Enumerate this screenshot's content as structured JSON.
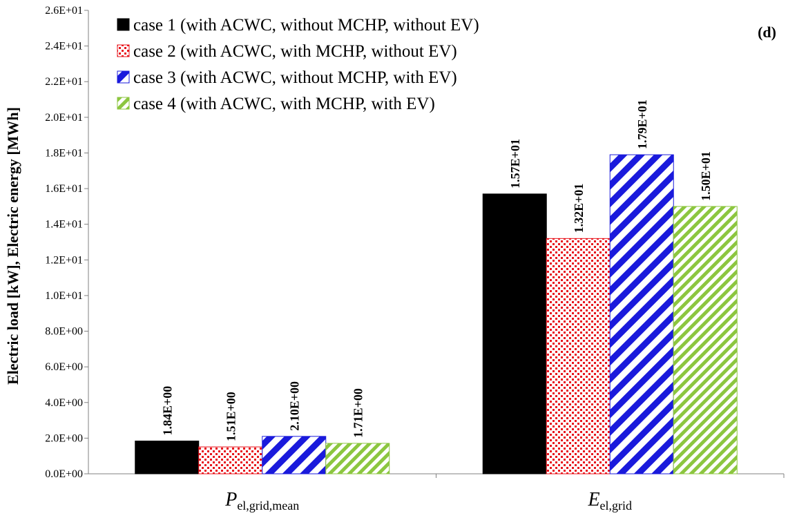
{
  "chart_data": {
    "type": "bar",
    "panel_label": "(d)",
    "ylabel": "Electric load [kW], Electric energy [MWh]",
    "ylim": [
      0,
      26
    ],
    "yticks": [
      {
        "v": 0,
        "t": "0.0E+00"
      },
      {
        "v": 2,
        "t": "2.0E+00"
      },
      {
        "v": 4,
        "t": "4.0E+00"
      },
      {
        "v": 6,
        "t": "6.0E+00"
      },
      {
        "v": 8,
        "t": "8.0E+00"
      },
      {
        "v": 10,
        "t": "1.0E+01"
      },
      {
        "v": 12,
        "t": "1.2E+01"
      },
      {
        "v": 14,
        "t": "1.4E+01"
      },
      {
        "v": 16,
        "t": "1.6E+01"
      },
      {
        "v": 18,
        "t": "1.8E+01"
      },
      {
        "v": 20,
        "t": "2.0E+01"
      },
      {
        "v": 22,
        "t": "2.2E+01"
      },
      {
        "v": 24,
        "t": "2.4E+01"
      },
      {
        "v": 26,
        "t": "2.6E+01"
      }
    ],
    "categories": [
      {
        "main": "P",
        "sub": "el,grid,mean"
      },
      {
        "main": "E",
        "sub": "el,grid"
      }
    ],
    "legend_position": "top-left",
    "grid": false,
    "series": [
      {
        "name": "case 1 (with ACWC, without MCHP, without EV)",
        "pattern": "solid",
        "color": "#000000",
        "values": [
          1.84,
          15.7
        ],
        "labels": [
          "1.84E+00",
          "1.57E+01"
        ]
      },
      {
        "name": "case 2 (with ACWC, with MCHP, without  EV)",
        "pattern": "dots",
        "color": "#e8141c",
        "values": [
          1.51,
          13.2
        ],
        "labels": [
          "1.51E+00",
          "1.32E+01"
        ]
      },
      {
        "name": "case 3 (with ACWC, without MCHP, with EV)",
        "pattern": "wide-diagonal",
        "color": "#1a1adc",
        "values": [
          2.1,
          17.9
        ],
        "labels": [
          "2.10E+00",
          "1.79E+01"
        ]
      },
      {
        "name": "case 4 (with ACWC, with MCHP, with EV)",
        "pattern": "diagonal",
        "color": "#8cc63f",
        "values": [
          1.71,
          15.0
        ],
        "labels": [
          "1.71E+00",
          "1.50E+01"
        ]
      }
    ]
  }
}
